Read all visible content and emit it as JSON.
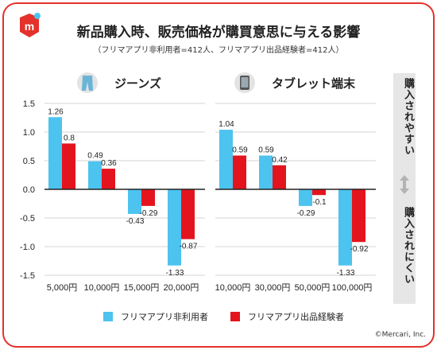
{
  "title": "新品購入時、販売価格が購買意思に与える影響",
  "subtitle": "（フリマアプリ非利用者=412人、フリマアプリ出品経験者=412人）",
  "side": {
    "top": "購入されやすい",
    "bottom": "購入されにくい"
  },
  "credit": "©Mercari, Inc.",
  "colors": {
    "non_user": "#4dc3ef",
    "seller": "#e4141e",
    "accent": "#e4312b",
    "side_bg": "#e6e6e6"
  },
  "chart_data": [
    {
      "type": "bar",
      "title": "ジーンズ",
      "icon": "jeans-icon",
      "categories": [
        "5,000円",
        "10,000円",
        "15,000円",
        "20,000円"
      ],
      "series": [
        {
          "name": "フリマアプリ非利用者",
          "values": [
            1.26,
            0.49,
            -0.43,
            -1.33
          ]
        },
        {
          "name": "フリマアプリ出品経験者",
          "values": [
            0.8,
            0.36,
            -0.29,
            -0.87
          ]
        }
      ],
      "ylim": [
        -1.5,
        1.5
      ],
      "yticks": [
        "1.5",
        "1.0",
        "0.5",
        "0.0",
        "-0.5",
        "-1.0",
        "-1.5"
      ]
    },
    {
      "type": "bar",
      "title": "タブレット端末",
      "icon": "tablet-icon",
      "categories": [
        "10,000円",
        "30,000円",
        "50,000円",
        "100,000円"
      ],
      "series": [
        {
          "name": "フリマアプリ非利用者",
          "values": [
            1.04,
            0.59,
            -0.29,
            -1.33
          ]
        },
        {
          "name": "フリマアプリ出品経験者",
          "values": [
            0.59,
            0.42,
            -0.1,
            -0.92
          ]
        }
      ],
      "ylim": [
        -1.5,
        1.5
      ]
    }
  ],
  "legend": [
    "フリマアプリ非利用者",
    "フリマアプリ出品経験者"
  ]
}
